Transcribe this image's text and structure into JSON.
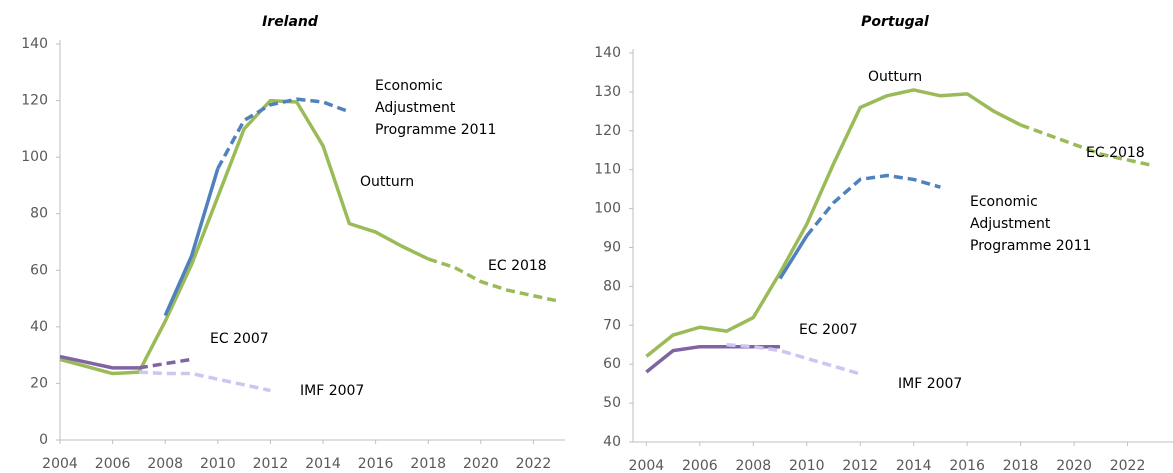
{
  "chart_data": [
    {
      "type": "line",
      "title": "Ireland",
      "x": [
        2004,
        2005,
        2006,
        2007,
        2008,
        2009,
        2010,
        2011,
        2012,
        2013,
        2014,
        2015,
        2016,
        2017,
        2018,
        2019,
        2020,
        2021,
        2022,
        2023
      ],
      "xlim": [
        2004,
        2023.2
      ],
      "xticks": [
        2004,
        2006,
        2008,
        2010,
        2012,
        2014,
        2016,
        2018,
        2020,
        2022
      ],
      "ylim": [
        0,
        140
      ],
      "yticks": [
        0,
        20,
        40,
        60,
        80,
        100,
        120,
        140
      ],
      "series": [
        {
          "name": "Outturn",
          "color": "#9bbb59",
          "values": [
            28.5,
            26,
            23.5,
            24,
            42,
            62,
            86,
            110,
            120,
            119.5,
            104,
            76.5,
            73.5,
            68.5,
            64,
            null,
            null,
            null,
            null,
            null
          ]
        },
        {
          "name": "EC 2018",
          "color": "#9bbb59",
          "dashed_from": 2018,
          "values": [
            null,
            null,
            null,
            null,
            null,
            null,
            null,
            null,
            null,
            null,
            null,
            null,
            null,
            null,
            64,
            61,
            56,
            53,
            51,
            49
          ]
        },
        {
          "name": "Economic Adjustment Programme 2011",
          "color": "#4f81bd",
          "dashed_from": 2010,
          "values": [
            null,
            null,
            null,
            null,
            44,
            65,
            96,
            113,
            118.5,
            120.5,
            119.5,
            116,
            null,
            null,
            null,
            null,
            null,
            null,
            null,
            null
          ]
        },
        {
          "name": "EC 2007",
          "color": "#8064a2",
          "dashed_from": 2007,
          "values": [
            29.5,
            27.5,
            25.5,
            25.5,
            27,
            28.5,
            null,
            null,
            null,
            null,
            null,
            null,
            null,
            null,
            null,
            null,
            null,
            null,
            null,
            null
          ]
        },
        {
          "name": "IMF 2007",
          "color": "#ccc6f0",
          "dashed_from": 2007,
          "values": [
            null,
            null,
            null,
            24,
            23.5,
            23.5,
            21.5,
            19.5,
            17.5,
            null,
            null,
            null,
            null,
            null,
            null,
            null,
            null,
            null,
            null,
            null
          ]
        }
      ]
    },
    {
      "type": "line",
      "title": "Portugal",
      "x": [
        2004,
        2005,
        2006,
        2007,
        2008,
        2009,
        2010,
        2011,
        2012,
        2013,
        2014,
        2015,
        2016,
        2017,
        2018,
        2019,
        2020,
        2021,
        2022,
        2023
      ],
      "xlim": [
        2003.5,
        2023.7
      ],
      "xticks": [
        2004,
        2006,
        2008,
        2010,
        2012,
        2014,
        2016,
        2018,
        2020,
        2022
      ],
      "ylim": [
        40,
        140
      ],
      "yticks": [
        40,
        50,
        60,
        70,
        80,
        90,
        100,
        110,
        120,
        130,
        140
      ],
      "series": [
        {
          "name": "Outturn",
          "color": "#9bbb59",
          "values": [
            62,
            67.5,
            69.5,
            68.5,
            72,
            83.5,
            96,
            111.5,
            126,
            129,
            130.5,
            129,
            129.5,
            125,
            121.5,
            null,
            null,
            null,
            null,
            null
          ]
        },
        {
          "name": "EC 2018",
          "color": "#9bbb59",
          "dashed_from": 2018,
          "values": [
            null,
            null,
            null,
            null,
            null,
            null,
            null,
            null,
            null,
            null,
            null,
            null,
            null,
            null,
            121.5,
            119,
            116.5,
            114,
            112.5,
            111
          ]
        },
        {
          "name": "Economic Adjustment Programme 2011",
          "color": "#4f81bd",
          "dashed_from": 2010,
          "values": [
            null,
            null,
            null,
            null,
            null,
            82,
            93,
            101.5,
            107.5,
            108.5,
            107.5,
            105.5,
            null,
            null,
            null,
            null,
            null,
            null,
            null,
            null
          ]
        },
        {
          "name": "EC 2007",
          "color": "#8064a2",
          "values": [
            58,
            63.5,
            64.5,
            64.5,
            64.5,
            64.5,
            null,
            null,
            null,
            null,
            null,
            null,
            null,
            null,
            null,
            null,
            null,
            null,
            null,
            null
          ]
        },
        {
          "name": "IMF 2007",
          "color": "#ccc6f0",
          "dashed_from": 2007,
          "values": [
            null,
            null,
            null,
            65,
            64.5,
            63.5,
            61.5,
            59.5,
            57.5,
            null,
            null,
            null,
            null,
            null,
            null,
            null,
            null,
            null,
            null,
            null
          ]
        }
      ]
    }
  ]
}
